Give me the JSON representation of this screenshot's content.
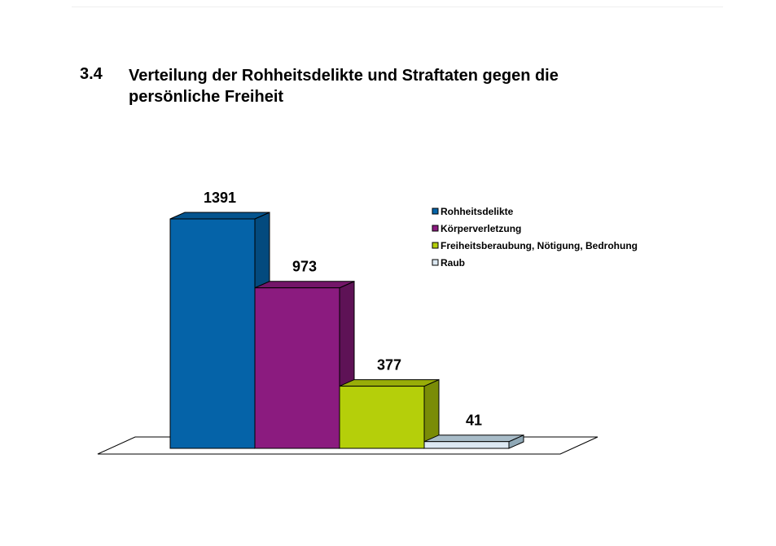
{
  "heading": {
    "number": "3.4",
    "title_line1": "Verteilung der Rohheitsdelikte und Straftaten gegen die",
    "title_line2": "persönliche Freiheit"
  },
  "chart_data": {
    "type": "bar",
    "style": "3d",
    "categories": [
      "Rohheitsdelikte",
      "Körperverletzung",
      "Freiheitsberaubung, Nötigung, Bedrohung",
      "Raub"
    ],
    "values": [
      1391,
      973,
      377,
      41
    ],
    "data_labels": [
      "1391",
      "973",
      "377",
      "41"
    ],
    "colors": [
      "#0563A8",
      "#8B1B7F",
      "#B5CF0A",
      "#DCE8F2"
    ],
    "side_colors": [
      "#034A7E",
      "#5E1256",
      "#7A8C07",
      "#8FA8B6"
    ],
    "top_colors": [
      "#04548E",
      "#741669",
      "#98AD08",
      "#A8BCC8"
    ],
    "legend": {
      "placement": "top-right",
      "entries": [
        "Rohheitsdelikte",
        "Körperverletzung",
        "Freiheitsberaubung, Nötigung, Bedrohung",
        "Raub"
      ]
    },
    "ylim": [
      0,
      1391
    ],
    "grid": false
  }
}
